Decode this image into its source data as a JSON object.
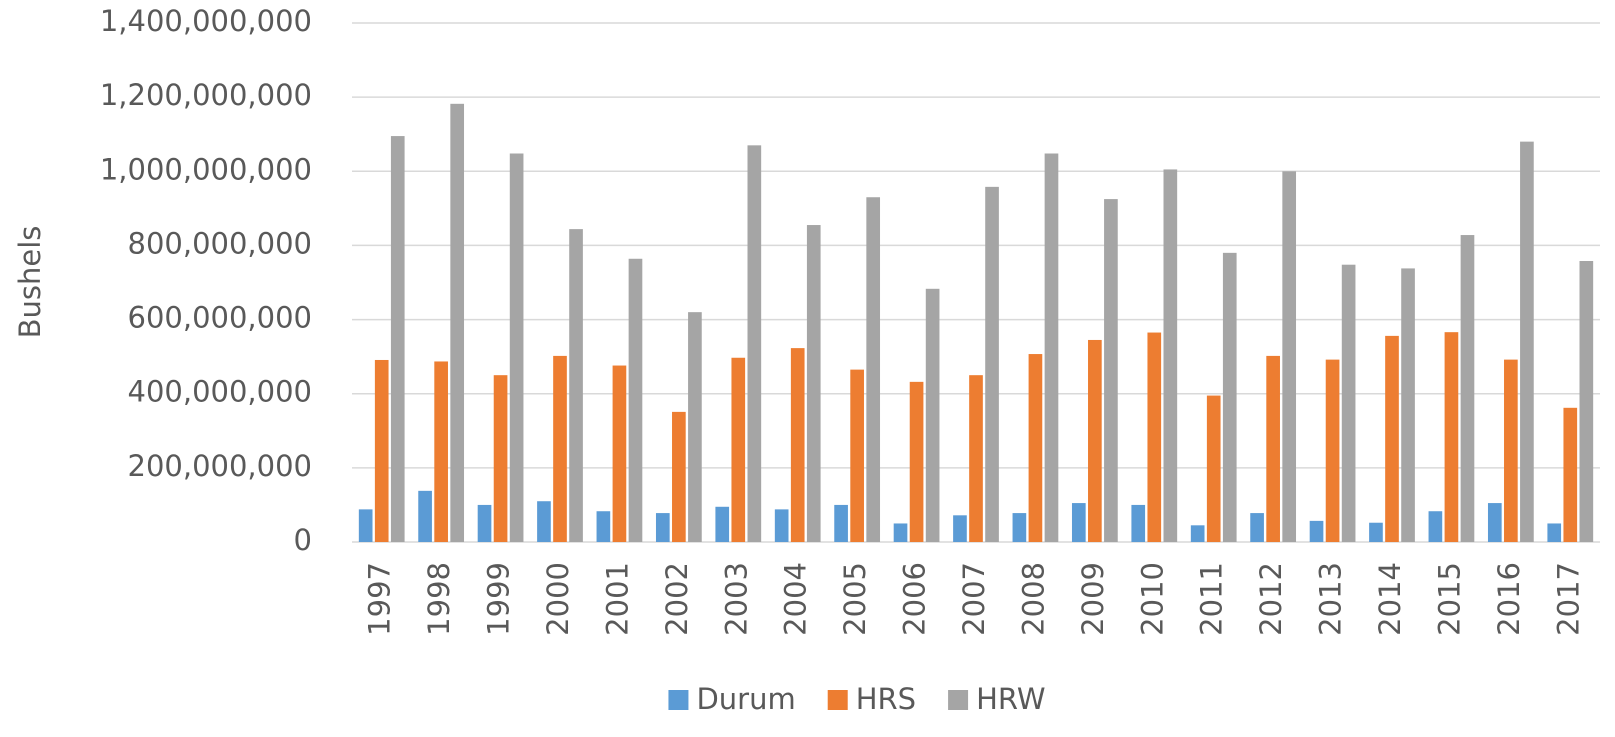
{
  "chart_data": {
    "type": "bar",
    "y_label": "Bushels",
    "categories": [
      "1997",
      "1998",
      "1999",
      "2000",
      "2001",
      "2002",
      "2003",
      "2004",
      "2005",
      "2006",
      "2007",
      "2008",
      "2009",
      "2010",
      "2011",
      "2012",
      "2013",
      "2014",
      "2015",
      "2016",
      "2017"
    ],
    "series": [
      {
        "name": "Durum",
        "color": "#5b9bd5",
        "values": [
          88000000,
          138000000,
          100000000,
          110000000,
          83000000,
          78000000,
          95000000,
          88000000,
          100000000,
          50000000,
          72000000,
          78000000,
          105000000,
          100000000,
          45000000,
          78000000,
          57000000,
          52000000,
          83000000,
          105000000,
          50000000
        ]
      },
      {
        "name": "HRS",
        "color": "#ed7d31",
        "values": [
          491000000,
          487000000,
          450000000,
          502000000,
          476000000,
          351000000,
          497000000,
          523000000,
          465000000,
          432000000,
          450000000,
          507000000,
          545000000,
          565000000,
          395000000,
          502000000,
          492000000,
          556000000,
          566000000,
          492000000,
          362000000
        ]
      },
      {
        "name": "HRW",
        "color": "#a5a5a5",
        "values": [
          1095000000,
          1182000000,
          1048000000,
          844000000,
          764000000,
          620000000,
          1070000000,
          855000000,
          930000000,
          683000000,
          958000000,
          1048000000,
          925000000,
          1005000000,
          780000000,
          1000000000,
          748000000,
          738000000,
          828000000,
          1080000000,
          758000000
        ]
      }
    ],
    "ylim": [
      0,
      1400000000
    ],
    "yticks": [
      0,
      {
        "value": 200000000,
        "label": "200,000,000"
      },
      {
        "value": 400000000,
        "label": "400,000,000"
      },
      {
        "value": 600000000,
        "label": "600,000,000"
      },
      {
        "value": 800000000,
        "label": "800,000,000"
      },
      {
        "value": 1000000000,
        "label": "1,000,000,000"
      },
      {
        "value": 1200000000,
        "label": "1,200,000,000"
      },
      {
        "value": 1400000000,
        "label": "1,400,000,000"
      }
    ],
    "grid": true,
    "legend": "bottom"
  }
}
